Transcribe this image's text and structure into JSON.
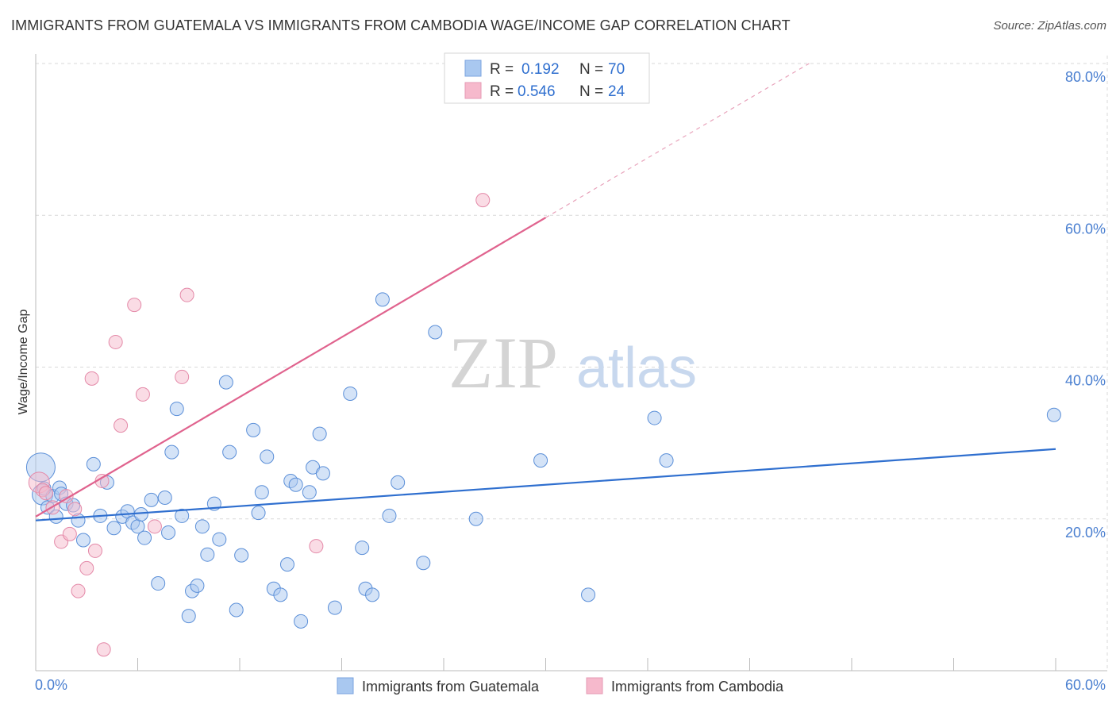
{
  "title": "IMMIGRANTS FROM GUATEMALA VS IMMIGRANTS FROM CAMBODIA WAGE/INCOME GAP CORRELATION CHART",
  "source": "Source: ZipAtlas.com",
  "watermark": {
    "zip": "ZIP",
    "atlas": "atlas"
  },
  "colors": {
    "blue_fill": "#a9c8f0",
    "blue_line": "#2f6fcf",
    "pink_fill": "#f6b9cc",
    "pink_line": "#e0638e",
    "axis_text": "#4a7fd0",
    "grid": "#d9d9d9"
  },
  "legend_top": {
    "rows": [
      {
        "r_label": "R =",
        "r_value": "0.192",
        "n_label": "N =",
        "n_value": "70",
        "color": "#a9c8f0"
      },
      {
        "r_label": "R =",
        "r_value": "0.546",
        "n_label": "N =",
        "n_value": "24",
        "color": "#f6b9cc"
      }
    ]
  },
  "legend_bottom": [
    {
      "label": "Immigrants from Guatemala",
      "color": "#a9c8f0"
    },
    {
      "label": "Immigrants from Cambodia",
      "color": "#f6b9cc"
    }
  ],
  "chart_data": {
    "type": "scatter",
    "title": "IMMIGRANTS FROM GUATEMALA VS IMMIGRANTS FROM CAMBODIA WAGE/INCOME GAP CORRELATION CHART",
    "xlabel": "",
    "ylabel": "Wage/Income Gap",
    "xlim": [
      0,
      60
    ],
    "ylim": [
      0,
      80
    ],
    "x_tick_labels": [
      {
        "value": 0,
        "label": "0.0%"
      },
      {
        "value": 60,
        "label": "60.0%"
      }
    ],
    "y_tick_labels": [
      {
        "value": 20,
        "label": "20.0%"
      },
      {
        "value": 40,
        "label": "40.0%"
      },
      {
        "value": 60,
        "label": "60.0%"
      },
      {
        "value": 80,
        "label": "80.0%"
      }
    ],
    "series": [
      {
        "name": "Immigrants from Guatemala",
        "color": "#a9c8f0",
        "stroke": "#5b8fd8",
        "points": [
          [
            0.3,
            26.8,
            3
          ],
          [
            0.4,
            23.2,
            2
          ],
          [
            0.5,
            24.0,
            1
          ],
          [
            0.7,
            21.5,
            1
          ],
          [
            1.0,
            23.0,
            1
          ],
          [
            1.2,
            20.3,
            1
          ],
          [
            1.4,
            24.1,
            1
          ],
          [
            1.5,
            23.3,
            1
          ],
          [
            1.8,
            22.0,
            1
          ],
          [
            2.2,
            21.8,
            1
          ],
          [
            2.5,
            19.8,
            1
          ],
          [
            2.8,
            17.2,
            1
          ],
          [
            3.4,
            27.2,
            1
          ],
          [
            3.8,
            20.4,
            1
          ],
          [
            4.2,
            24.8,
            1
          ],
          [
            4.6,
            18.8,
            1
          ],
          [
            5.1,
            20.3,
            1
          ],
          [
            5.4,
            21.0,
            1
          ],
          [
            5.7,
            19.5,
            1
          ],
          [
            6.0,
            19.0,
            1
          ],
          [
            6.2,
            20.6,
            1
          ],
          [
            6.4,
            17.5,
            1
          ],
          [
            6.8,
            22.5,
            1
          ],
          [
            7.2,
            11.5,
            1
          ],
          [
            7.6,
            22.8,
            1
          ],
          [
            7.8,
            18.2,
            1
          ],
          [
            8.0,
            28.8,
            1
          ],
          [
            8.3,
            34.5,
            1
          ],
          [
            8.6,
            20.4,
            1
          ],
          [
            9.0,
            7.2,
            1
          ],
          [
            9.2,
            10.5,
            1
          ],
          [
            9.5,
            11.2,
            1
          ],
          [
            9.8,
            19.0,
            1
          ],
          [
            10.1,
            15.3,
            1
          ],
          [
            10.5,
            22.0,
            1
          ],
          [
            10.8,
            17.3,
            1
          ],
          [
            11.2,
            38.0,
            1
          ],
          [
            11.4,
            28.8,
            1
          ],
          [
            11.8,
            8.0,
            1
          ],
          [
            12.1,
            15.2,
            1
          ],
          [
            12.8,
            31.7,
            1
          ],
          [
            13.1,
            20.8,
            1
          ],
          [
            13.3,
            23.5,
            1
          ],
          [
            13.6,
            28.2,
            1
          ],
          [
            14.0,
            10.8,
            1
          ],
          [
            14.4,
            10.0,
            1
          ],
          [
            14.8,
            14.0,
            1
          ],
          [
            15.0,
            25.0,
            1
          ],
          [
            15.3,
            24.5,
            1
          ],
          [
            15.6,
            6.5,
            1
          ],
          [
            16.1,
            23.5,
            1
          ],
          [
            16.3,
            26.8,
            1
          ],
          [
            16.7,
            31.2,
            1
          ],
          [
            16.9,
            26.0,
            1
          ],
          [
            17.6,
            8.3,
            1
          ],
          [
            18.5,
            36.5,
            1
          ],
          [
            19.2,
            16.2,
            1
          ],
          [
            19.4,
            10.8,
            1
          ],
          [
            19.8,
            10.0,
            1
          ],
          [
            20.4,
            48.9,
            1
          ],
          [
            20.8,
            20.4,
            1
          ],
          [
            21.3,
            24.8,
            1
          ],
          [
            22.8,
            14.2,
            1
          ],
          [
            23.5,
            44.6,
            1
          ],
          [
            25.9,
            20.0,
            1
          ],
          [
            29.7,
            27.7,
            1
          ],
          [
            32.5,
            10.0,
            1
          ],
          [
            36.4,
            33.3,
            1
          ],
          [
            37.1,
            27.7,
            1
          ],
          [
            59.9,
            33.7,
            1
          ]
        ],
        "trend": {
          "x": [
            0,
            60
          ],
          "y": [
            19.8,
            29.2
          ]
        }
      },
      {
        "name": "Immigrants from Cambodia",
        "color": "#f6b9cc",
        "stroke": "#e489a8",
        "points": [
          [
            0.2,
            24.8,
            2
          ],
          [
            0.4,
            23.8,
            1
          ],
          [
            0.6,
            23.4,
            1
          ],
          [
            1.0,
            21.5,
            1
          ],
          [
            1.5,
            17.0,
            1
          ],
          [
            1.8,
            23.0,
            1
          ],
          [
            2.0,
            18.0,
            1
          ],
          [
            2.3,
            21.3,
            1
          ],
          [
            2.5,
            10.5,
            1
          ],
          [
            3.0,
            13.5,
            1
          ],
          [
            3.3,
            38.5,
            1
          ],
          [
            3.5,
            15.8,
            1
          ],
          [
            3.9,
            25.0,
            1
          ],
          [
            4.0,
            2.8,
            1
          ],
          [
            4.7,
            43.3,
            1
          ],
          [
            5.0,
            32.3,
            1
          ],
          [
            5.8,
            48.2,
            1
          ],
          [
            6.3,
            36.4,
            1
          ],
          [
            7.0,
            19.0,
            1
          ],
          [
            8.6,
            38.7,
            1
          ],
          [
            8.9,
            49.5,
            1
          ],
          [
            16.5,
            16.4,
            1
          ],
          [
            26.3,
            62.0,
            1
          ]
        ],
        "trend": {
          "x": [
            0,
            30
          ],
          "y": [
            20.3,
            59.7
          ]
        },
        "trend_extension": {
          "x": [
            30,
            45.5
          ],
          "y": [
            59.7,
            80.0
          ]
        }
      }
    ]
  }
}
